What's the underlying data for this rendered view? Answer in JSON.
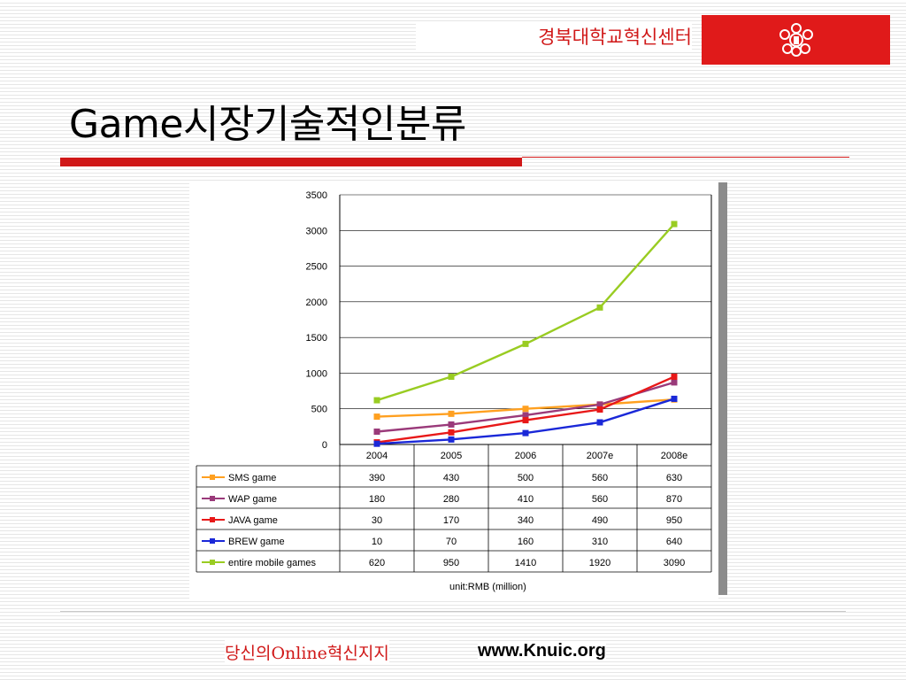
{
  "header": {
    "org_name": "경북대학교혁신센터",
    "logo": {
      "icon": "university-emblem-icon",
      "color": "#e01a1a"
    }
  },
  "page": {
    "title": "Game시장기술적인분류"
  },
  "colors": {
    "accent": "#d01818"
  },
  "chart_data": {
    "type": "line",
    "categories": [
      "2004",
      "2005",
      "2006",
      "2007e",
      "2008e"
    ],
    "ylim": [
      0,
      3500
    ],
    "yticks": [
      "0",
      "500",
      "1000",
      "1500",
      "2000",
      "2500",
      "3000",
      "3500"
    ],
    "series": [
      {
        "name": "SMS game",
        "color": "#ffa020",
        "values": [
          390,
          430,
          500,
          560,
          630
        ],
        "labels": [
          "390",
          "430",
          "500",
          "560",
          "630"
        ]
      },
      {
        "name": "WAP game",
        "color": "#9a3a7a",
        "values": [
          180,
          280,
          410,
          560,
          870
        ],
        "labels": [
          "180",
          "280",
          "410",
          "560",
          "870"
        ]
      },
      {
        "name": "JAVA game",
        "color": "#e81818",
        "values": [
          30,
          170,
          340,
          490,
          950
        ],
        "labels": [
          "30",
          "170",
          "340",
          "490",
          "950"
        ]
      },
      {
        "name": "BREW game",
        "color": "#1a28d8",
        "values": [
          10,
          70,
          160,
          310,
          640
        ],
        "labels": [
          "10",
          "70",
          "160",
          "310",
          "640"
        ]
      },
      {
        "name": "entire mobile games",
        "color": "#99cc22",
        "values": [
          620,
          950,
          1410,
          1920,
          3090
        ],
        "labels": [
          "620",
          "950",
          "1410",
          "1920",
          "3090"
        ]
      }
    ],
    "note": "unit:RMB (million)",
    "grid": true,
    "legend": "data-table-left"
  },
  "footer": {
    "tagline": "당신의Online혁신지지",
    "url": "www.Knuic.org"
  }
}
